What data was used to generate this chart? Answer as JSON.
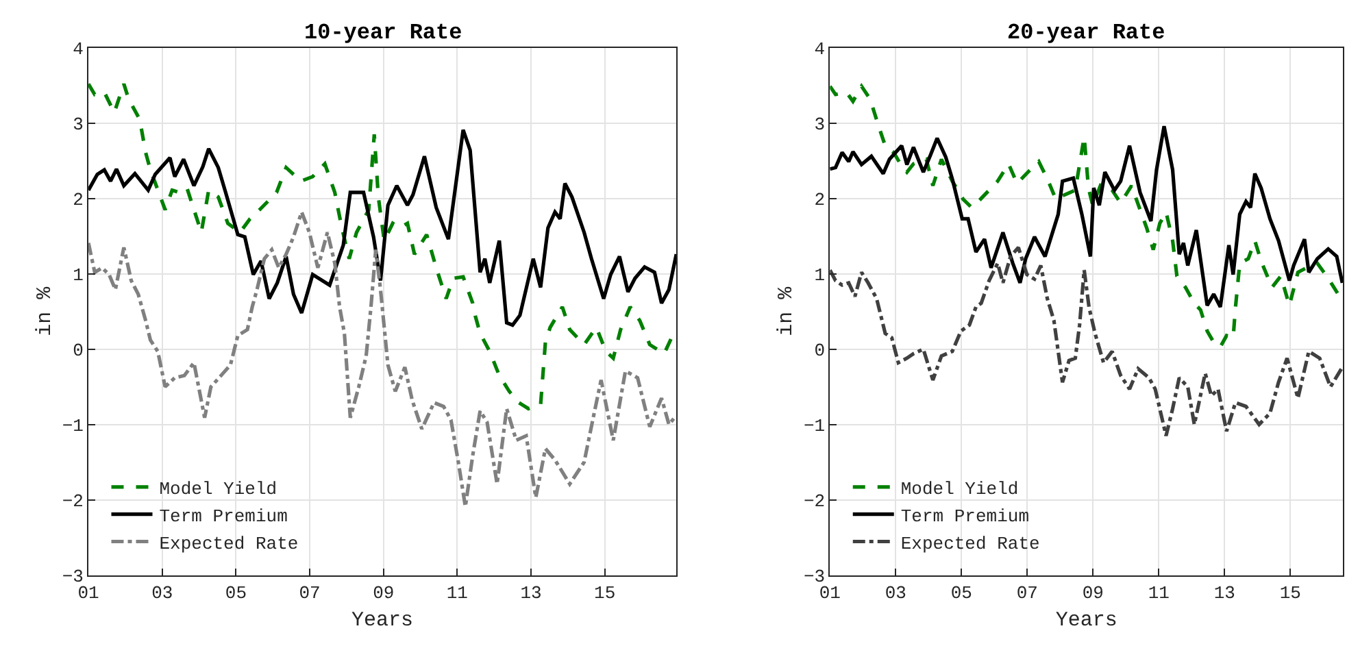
{
  "chart_data": [
    {
      "type": "line",
      "title": "10-year Rate",
      "xlabel": "Years",
      "ylabel": "in %",
      "xlim": [
        2001,
        2016.94
      ],
      "xticks": [
        {
          "value": 2001,
          "label": "01"
        },
        {
          "value": 2003,
          "label": "03"
        },
        {
          "value": 2005,
          "label": "05"
        },
        {
          "value": 2007,
          "label": "07"
        },
        {
          "value": 2009,
          "label": "09"
        },
        {
          "value": 2011,
          "label": "11"
        },
        {
          "value": 2013,
          "label": "13"
        },
        {
          "value": 2015,
          "label": "15"
        }
      ],
      "ylim": [
        -3,
        4
      ],
      "yticks": [
        -3,
        -2,
        -1,
        0,
        1,
        2,
        3,
        4
      ],
      "grid": true,
      "legend": "bottom left",
      "series": [
        {
          "name": "Model Yield",
          "color": "#008000",
          "line_style": "dashed",
          "x": [
            2001,
            2001.17,
            2001.43,
            2001.7,
            2001.96,
            2002.09,
            2002.39,
            2002.55,
            2002.68,
            2003.08,
            2003.27,
            2003.47,
            2003.67,
            2004.06,
            2004.26,
            2004.52,
            2004.78,
            2005.11,
            2005.38,
            2005.64,
            2006.1,
            2006.36,
            2006.76,
            2007.08,
            2007.41,
            2007.68,
            2007.87,
            2008.07,
            2008.27,
            2008.6,
            2008.75,
            2008.86,
            2009.02,
            2009.25,
            2009.45,
            2009.65,
            2009.84,
            2010.17,
            2010.43,
            2010.7,
            2010.89,
            2011.16,
            2011.42,
            2011.49,
            2011.62,
            2011.88,
            2012.14,
            2012.41,
            2012.67,
            2012.93,
            2013.26,
            2013.39,
            2013.52,
            2013.85,
            2014.05,
            2014.44,
            2014.77,
            2015.03,
            2015.23,
            2015.43,
            2015.69,
            2015.95,
            2016.22,
            2016.61,
            2016.81,
            2016.94
          ],
          "values": [
            3.52,
            3.38,
            3.41,
            3.14,
            3.52,
            3.32,
            3.05,
            2.61,
            2.38,
            1.85,
            2.11,
            2.08,
            2.14,
            1.55,
            2.11,
            2.02,
            1.67,
            1.55,
            1.73,
            1.85,
            2.08,
            2.41,
            2.23,
            2.29,
            2.46,
            2.08,
            1.61,
            1.2,
            1.55,
            1.85,
            2.85,
            2.02,
            1.44,
            1.67,
            1.61,
            1.67,
            1.26,
            1.52,
            1.08,
            0.67,
            0.94,
            0.96,
            0.61,
            0.44,
            0.21,
            -0.03,
            -0.35,
            -0.56,
            -0.71,
            -0.79,
            -0.74,
            0.09,
            0.29,
            0.56,
            0.26,
            0.06,
            0.29,
            -0.03,
            -0.12,
            0.26,
            0.56,
            0.38,
            0.06,
            -0.06,
            0.15,
            0.21
          ]
        },
        {
          "name": "Term Premium",
          "color": "#000000",
          "line_style": "solid",
          "x": [
            2001,
            2001.24,
            2001.43,
            2001.6,
            2001.76,
            2001.96,
            2002.26,
            2002.62,
            2002.81,
            2003.21,
            2003.34,
            2003.58,
            2003.86,
            2004.1,
            2004.26,
            2004.52,
            2004.72,
            2005.05,
            2005.24,
            2005.47,
            2005.68,
            2005.9,
            2006.12,
            2006.36,
            2006.56,
            2006.78,
            2007.08,
            2007.54,
            2007.91,
            2008.1,
            2008.46,
            2008.73,
            2008.92,
            2009.12,
            2009.36,
            2009.65,
            2009.8,
            2010.11,
            2010.43,
            2010.76,
            2011.16,
            2011.35,
            2011.62,
            2011.75,
            2011.88,
            2012.14,
            2012.34,
            2012.5,
            2012.7,
            2013.06,
            2013.26,
            2013.46,
            2013.65,
            2013.79,
            2013.92,
            2014.11,
            2014.44,
            2014.64,
            2014.97,
            2015.16,
            2015.4,
            2015.63,
            2015.82,
            2016.08,
            2016.35,
            2016.54,
            2016.74,
            2016.94
          ],
          "values": [
            2.11,
            2.32,
            2.38,
            2.23,
            2.39,
            2.17,
            2.33,
            2.11,
            2.32,
            2.54,
            2.29,
            2.52,
            2.17,
            2.42,
            2.66,
            2.41,
            2.08,
            1.52,
            1.49,
            0.99,
            1.17,
            0.67,
            0.88,
            1.23,
            0.73,
            0.48,
            0.99,
            0.85,
            1.38,
            2.08,
            2.08,
            1.49,
            0.91,
            1.91,
            2.17,
            1.91,
            2.05,
            2.56,
            1.88,
            1.46,
            2.91,
            2.64,
            1.02,
            1.2,
            0.88,
            1.44,
            0.35,
            0.32,
            0.45,
            1.2,
            0.82,
            1.61,
            1.82,
            1.73,
            2.2,
            2.02,
            1.55,
            1.2,
            0.67,
            0.99,
            1.23,
            0.76,
            0.94,
            1.09,
            1.02,
            0.61,
            0.79,
            1.26
          ]
        },
        {
          "name": "Expected Rate",
          "color": "#808080",
          "line_style": "dashdot",
          "x": [
            2001,
            2001.17,
            2001.37,
            2001.56,
            2001.73,
            2001.96,
            2002.16,
            2002.35,
            2002.55,
            2002.68,
            2002.88,
            2003.08,
            2003.34,
            2003.6,
            2003.86,
            2004.15,
            2004.32,
            2004.65,
            2004.85,
            2005.05,
            2005.31,
            2005.44,
            2005.57,
            2005.77,
            2005.97,
            2006.16,
            2006.36,
            2006.56,
            2006.78,
            2006.99,
            2007.22,
            2007.48,
            2007.68,
            2007.81,
            2007.94,
            2008.1,
            2008.33,
            2008.53,
            2008.66,
            2008.79,
            2008.92,
            2009.12,
            2009.32,
            2009.58,
            2009.78,
            2010.04,
            2010.37,
            2010.63,
            2010.83,
            2011.03,
            2011.22,
            2011.42,
            2011.62,
            2011.81,
            2012.08,
            2012.34,
            2012.6,
            2012.87,
            2013.13,
            2013.39,
            2013.65,
            2014.05,
            2014.44,
            2014.7,
            2014.9,
            2015.23,
            2015.56,
            2015.89,
            2016.22,
            2016.54,
            2016.74,
            2016.94
          ],
          "values": [
            1.41,
            1.02,
            1.08,
            0.99,
            0.79,
            1.35,
            0.91,
            0.73,
            0.38,
            0.12,
            -0.03,
            -0.5,
            -0.38,
            -0.35,
            -0.18,
            -0.91,
            -0.5,
            -0.32,
            -0.21,
            0.18,
            0.26,
            0.56,
            0.79,
            1.2,
            1.32,
            1.08,
            1.26,
            1.49,
            1.82,
            1.55,
            1.08,
            1.55,
            1.14,
            0.56,
            0.21,
            -0.91,
            -0.5,
            -0.09,
            0.56,
            1.32,
            0.79,
            -0.21,
            -0.56,
            -0.24,
            -0.68,
            -1.06,
            -0.71,
            -0.76,
            -0.94,
            -1.5,
            -2.09,
            -1.41,
            -0.82,
            -0.97,
            -1.79,
            -0.79,
            -1.21,
            -1.15,
            -1.97,
            -1.32,
            -1.47,
            -1.79,
            -1.5,
            -0.88,
            -0.41,
            -1.21,
            -0.29,
            -0.38,
            -1.03,
            -0.65,
            -1.0,
            -0.88
          ]
        }
      ]
    },
    {
      "type": "line",
      "title": "20-year Rate",
      "xlabel": "Years",
      "ylabel": "in %",
      "xlim": [
        2001,
        2016.6
      ],
      "xticks": [
        {
          "value": 2001,
          "label": "01"
        },
        {
          "value": 2003,
          "label": "03"
        },
        {
          "value": 2005,
          "label": "05"
        },
        {
          "value": 2007,
          "label": "07"
        },
        {
          "value": 2009,
          "label": "09"
        },
        {
          "value": 2011,
          "label": "11"
        },
        {
          "value": 2013,
          "label": "13"
        },
        {
          "value": 2015,
          "label": "15"
        }
      ],
      "ylim": [
        -3,
        4
      ],
      "yticks": [
        -3,
        -2,
        -1,
        0,
        1,
        2,
        3,
        4
      ],
      "grid": true,
      "legend": "bottom left",
      "series": [
        {
          "name": "Model Yield",
          "color": "#008000",
          "line_style": "dashed",
          "x": [
            2001,
            2001.17,
            2001.5,
            2001.7,
            2001.96,
            2002.22,
            2002.48,
            2002.68,
            2002.94,
            2003.14,
            2003.34,
            2003.54,
            2003.93,
            2004.13,
            2004.39,
            2004.72,
            2005.05,
            2005.31,
            2005.51,
            2005.84,
            2006.1,
            2006.43,
            2006.69,
            2007.02,
            2007.35,
            2007.61,
            2007.87,
            2008.14,
            2008.46,
            2008.73,
            2008.86,
            2008.99,
            2009.25,
            2009.58,
            2009.84,
            2010.17,
            2010.43,
            2010.63,
            2010.83,
            2011.03,
            2011.22,
            2011.42,
            2011.55,
            2011.81,
            2012.08,
            2012.27,
            2012.47,
            2012.67,
            2012.87,
            2013.06,
            2013.26,
            2013.33,
            2013.46,
            2013.72,
            2013.92,
            2014.11,
            2014.44,
            2014.71,
            2014.97,
            2015.23,
            2015.49,
            2015.82,
            2016.15,
            2016.41,
            2016.58
          ],
          "values": [
            3.49,
            3.38,
            3.41,
            3.29,
            3.49,
            3.32,
            2.96,
            2.7,
            2.61,
            2.46,
            2.35,
            2.46,
            2.52,
            2.17,
            2.52,
            2.23,
            1.99,
            1.88,
            1.96,
            2.11,
            2.23,
            2.46,
            2.2,
            2.35,
            2.49,
            2.26,
            1.99,
            2.05,
            2.11,
            2.82,
            2.14,
            1.91,
            2.2,
            2.11,
            1.94,
            2.17,
            1.85,
            1.61,
            1.32,
            1.67,
            1.82,
            1.44,
            0.97,
            0.82,
            0.61,
            0.52,
            0.24,
            0.09,
            0.03,
            0.18,
            0.15,
            0.55,
            1.14,
            1.2,
            1.44,
            1.17,
            0.82,
            0.97,
            0.58,
            1.02,
            1.08,
            1.14,
            0.94,
            0.76,
            0.64
          ]
        },
        {
          "name": "Term Premium",
          "color": "#000000",
          "line_style": "solid",
          "x": [
            2001,
            2001.17,
            2001.37,
            2001.57,
            2001.7,
            2001.96,
            2002.26,
            2002.62,
            2002.81,
            2003.18,
            2003.34,
            2003.54,
            2003.84,
            2004.06,
            2004.26,
            2004.52,
            2004.72,
            2005.02,
            2005.2,
            2005.44,
            2005.7,
            2005.9,
            2006.26,
            2006.56,
            2006.78,
            2006.95,
            2007.22,
            2007.54,
            2007.94,
            2008.07,
            2008.4,
            2008.66,
            2008.92,
            2009.02,
            2009.19,
            2009.36,
            2009.65,
            2009.84,
            2010.11,
            2010.43,
            2010.76,
            2010.93,
            2011.16,
            2011.42,
            2011.62,
            2011.75,
            2011.88,
            2012.14,
            2012.47,
            2012.67,
            2012.87,
            2013.13,
            2013.26,
            2013.46,
            2013.65,
            2013.79,
            2013.92,
            2014.11,
            2014.38,
            2014.64,
            2014.97,
            2015.1,
            2015.43,
            2015.56,
            2015.82,
            2016.15,
            2016.41,
            2016.58
          ],
          "values": [
            2.39,
            2.41,
            2.61,
            2.49,
            2.62,
            2.45,
            2.56,
            2.33,
            2.52,
            2.7,
            2.45,
            2.68,
            2.35,
            2.58,
            2.8,
            2.55,
            2.26,
            1.73,
            1.73,
            1.29,
            1.46,
            1.08,
            1.55,
            1.14,
            0.88,
            1.2,
            1.49,
            1.23,
            1.79,
            2.23,
            2.27,
            1.79,
            1.23,
            2.14,
            1.91,
            2.35,
            2.11,
            2.23,
            2.7,
            2.08,
            1.7,
            2.38,
            2.96,
            2.38,
            1.26,
            1.41,
            1.11,
            1.58,
            0.58,
            0.73,
            0.56,
            1.38,
            0.99,
            1.79,
            1.96,
            1.88,
            2.33,
            2.14,
            1.73,
            1.44,
            0.91,
            1.11,
            1.46,
            1.02,
            1.2,
            1.33,
            1.23,
            0.88
          ]
        },
        {
          "name": "Expected Rate",
          "color": "#404040",
          "line_style": "dashdot",
          "x": [
            2001,
            2001.17,
            2001.37,
            2001.57,
            2001.76,
            2001.96,
            2002.16,
            2002.42,
            2002.68,
            2002.88,
            2003.08,
            2003.34,
            2003.54,
            2003.84,
            2004.13,
            2004.39,
            2004.72,
            2004.98,
            2005.24,
            2005.44,
            2005.6,
            2005.84,
            2006.1,
            2006.26,
            2006.49,
            2006.73,
            2006.99,
            2007.22,
            2007.41,
            2007.61,
            2007.81,
            2008.07,
            2008.27,
            2008.46,
            2008.59,
            2008.73,
            2008.88,
            2009.06,
            2009.32,
            2009.58,
            2009.84,
            2010.11,
            2010.37,
            2010.7,
            2010.89,
            2011.22,
            2011.42,
            2011.62,
            2011.88,
            2012.08,
            2012.41,
            2012.6,
            2012.8,
            2013.06,
            2013.33,
            2013.65,
            2014.05,
            2014.38,
            2014.64,
            2014.9,
            2015.23,
            2015.56,
            2015.89,
            2016.22,
            2016.58
          ],
          "values": [
            1.05,
            0.91,
            0.85,
            0.88,
            0.7,
            1.02,
            0.88,
            0.67,
            0.21,
            0.15,
            -0.18,
            -0.12,
            -0.06,
            0,
            -0.41,
            -0.09,
            -0.03,
            0.24,
            0.32,
            0.56,
            0.61,
            0.91,
            1.14,
            0.88,
            1.23,
            1.35,
            0.99,
            0.93,
            1.11,
            0.67,
            0.38,
            -0.44,
            -0.15,
            -0.12,
            0.32,
            1.05,
            0.55,
            0.21,
            -0.18,
            -0.03,
            -0.35,
            -0.53,
            -0.26,
            -0.38,
            -0.53,
            -1.15,
            -0.79,
            -0.38,
            -0.5,
            -1.0,
            -0.32,
            -0.62,
            -0.53,
            -1.09,
            -0.71,
            -0.76,
            -1.0,
            -0.85,
            -0.44,
            -0.12,
            -0.65,
            -0.03,
            -0.12,
            -0.5,
            -0.24
          ]
        }
      ]
    }
  ]
}
